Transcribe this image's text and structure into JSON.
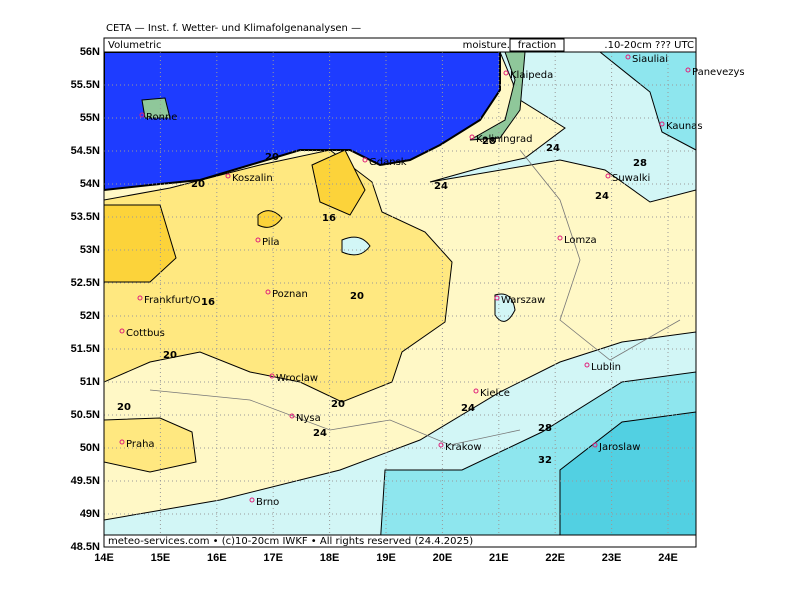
{
  "header": {
    "title": "CETA — Inst. f. Wetter- und Klimafolgenanalysen —",
    "left": "Volumetric",
    "right_prefix": "moisture.",
    "right_box": "fraction",
    "right_suffix": ".10-20cm ??? UTC"
  },
  "footer": "meteo-services.com • (c)10-20cm IWKF • All rights reserved (24.4.2025)",
  "lat_labels": [
    "56N",
    "55.5N",
    "55N",
    "54.5N",
    "54N",
    "53.5N",
    "53N",
    "52.5N",
    "52N",
    "51.5N",
    "51N",
    "50.5N",
    "50N",
    "49.5N",
    "49N",
    "48.5N"
  ],
  "lon_labels": [
    "14E",
    "15E",
    "16E",
    "17E",
    "18E",
    "19E",
    "20E",
    "21E",
    "22E",
    "23E",
    "24E"
  ],
  "cities": [
    "Ronne",
    "Koszalin",
    "Pila",
    "Poznan",
    "Frankfurt/O",
    "Cottbus",
    "Wroclaw",
    "Nysa",
    "Praha",
    "Brno",
    "Krakow",
    "Kielce",
    "Warszaw",
    "Lomza",
    "Lublin",
    "Jaroslaw",
    "Suwalki",
    "Kaliningrad",
    "Klaipeda",
    "Siauliai",
    "Panevezys",
    "Kaunas",
    "Gdansk"
  ],
  "contour_labels": [
    "20",
    "20",
    "16",
    "16",
    "20",
    "20",
    "20",
    "20",
    "24",
    "24",
    "28",
    "32",
    "24",
    "28",
    "24",
    "24",
    "28"
  ]
}
